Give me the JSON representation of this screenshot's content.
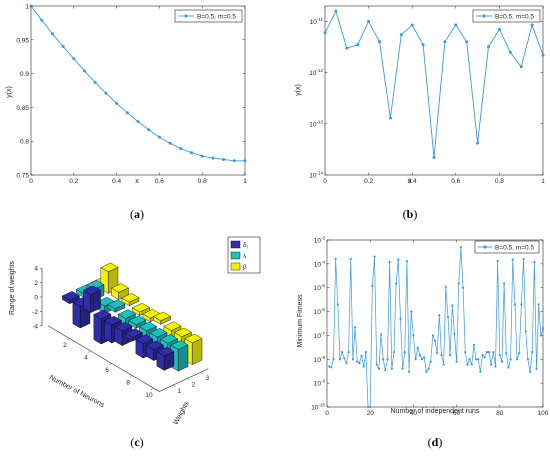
{
  "colors": {
    "line": "#3d9ad6",
    "axis": "#262626",
    "bar_weight1": "#2e2ea8",
    "bar_weight2": "#1fbfbf",
    "bar_weight3": "#f2f20a"
  },
  "chart_data": [
    {
      "type": "line",
      "panel_label": "a",
      "xlabel": "x",
      "ylabel": "y(x)",
      "xlim": [
        0,
        1
      ],
      "ylim": [
        0.75,
        1
      ],
      "xticks": [
        "0",
        "0.2",
        "0.4",
        "0.6",
        "0.8",
        "1"
      ],
      "yticks": [
        "0.75",
        "0.8",
        "0.85",
        "0.9",
        "0.95",
        "1"
      ],
      "legend_position": "top-right",
      "series": [
        {
          "name": "B=0.5, m=0.5",
          "x": [
            0,
            0.05,
            0.1,
            0.15,
            0.2,
            0.25,
            0.3,
            0.35,
            0.4,
            0.45,
            0.5,
            0.55,
            0.6,
            0.65,
            0.7,
            0.75,
            0.8,
            0.85,
            0.9,
            0.95,
            1
          ],
          "y": [
            1.0,
            0.979,
            0.959,
            0.94,
            0.922,
            0.904,
            0.887,
            0.871,
            0.856,
            0.842,
            0.829,
            0.817,
            0.806,
            0.797,
            0.789,
            0.783,
            0.778,
            0.775,
            0.773,
            0.771,
            0.771
          ]
        }
      ]
    },
    {
      "type": "line",
      "panel_label": "b",
      "xlabel": "x",
      "ylabel": "y(x)",
      "yscale": "log",
      "xlim": [
        0,
        1
      ],
      "ylim": [
        1e-14,
        2e-11
      ],
      "xticks": [
        "0",
        "0.2",
        "0.4",
        "0.6",
        "0.8",
        "1"
      ],
      "yticks": [
        {
          "value": 1e-11,
          "base": "10",
          "exp": "-11"
        },
        {
          "value": 1e-12,
          "base": "10",
          "exp": "-12"
        },
        {
          "value": 1e-13,
          "base": "10",
          "exp": "-13"
        },
        {
          "value": 1e-14,
          "base": "10",
          "exp": "-14"
        }
      ],
      "legend_position": "top-right",
      "series": [
        {
          "name": "B=0.5, m=0.5",
          "x": [
            0,
            0.05,
            0.1,
            0.15,
            0.2,
            0.25,
            0.3,
            0.35,
            0.4,
            0.45,
            0.5,
            0.55,
            0.6,
            0.65,
            0.7,
            0.75,
            0.8,
            0.85,
            0.9,
            0.95,
            1
          ],
          "y": [
            6e-12,
            1.6e-11,
            3e-12,
            3.5e-12,
            1e-11,
            4e-12,
            1.3e-13,
            5.5e-12,
            8.5e-12,
            3.5e-12,
            2.2e-14,
            4e-12,
            8.5e-12,
            4e-12,
            4.2e-14,
            3.2e-12,
            7e-12,
            2.5e-12,
            1.3e-12,
            8.5e-12,
            2.2e-12
          ]
        }
      ]
    },
    {
      "type": "bar3d",
      "panel_label": "c",
      "xlabel": "Weights",
      "ylabel": "Number of Neurons",
      "zlabel": "Range of weights",
      "zticks": [
        "-4",
        "-2",
        "0",
        "2",
        "4"
      ],
      "weight_ticks": [
        "1",
        "2",
        "3"
      ],
      "neuron_ticks": [
        "2",
        "4",
        "6",
        "8",
        "10"
      ],
      "legend_position": "top-right",
      "legend": [
        "δ",
        "λ",
        "β"
      ],
      "legend_subscript": "i",
      "neurons": [
        1,
        2,
        3,
        4,
        5,
        6,
        7,
        8,
        9,
        10
      ],
      "series": [
        {
          "values": [
            -0.5,
            -3.0,
            2.5,
            -3.5,
            -2.5,
            -2.0,
            -0.5,
            -2.0,
            -1.5,
            -2.0
          ]
        },
        {
          "values": [
            -0.5,
            1.5,
            -1.0,
            0.5,
            -1.5,
            -0.5,
            -1.0,
            -2.5,
            -2.0,
            -3.0
          ]
        },
        {
          "values": [
            -0.5,
            3.0,
            1.0,
            0.5,
            -0.5,
            -0.5,
            0.5,
            -1.0,
            -1.0,
            -3.0
          ]
        }
      ]
    },
    {
      "type": "line",
      "panel_label": "d",
      "xlabel": "Number of independent runs",
      "ylabel": "Minimum Fitness",
      "yscale": "log",
      "xlim": [
        0,
        100
      ],
      "ylim": [
        1e-10,
        0.001
      ],
      "xticks": [
        "0",
        "20",
        "40",
        "60",
        "80",
        "100"
      ],
      "yticks": [
        {
          "value": 0.001,
          "base": "10",
          "exp": "-3"
        },
        {
          "value": 0.0001,
          "base": "10",
          "exp": "-4"
        },
        {
          "value": 1e-05,
          "base": "10",
          "exp": "-5"
        },
        {
          "value": 1e-06,
          "base": "10",
          "exp": "-6"
        },
        {
          "value": 1e-07,
          "base": "10",
          "exp": "-7"
        },
        {
          "value": 1e-08,
          "base": "10",
          "exp": "-8"
        },
        {
          "value": 1e-09,
          "base": "10",
          "exp": "-9"
        },
        {
          "value": 1e-10,
          "base": "10",
          "exp": "-10"
        }
      ],
      "legend_position": "top-right",
      "series": [
        {
          "name": "B=0.5, m=0.5",
          "x": [
            1,
            2,
            3,
            4,
            5,
            6,
            7,
            8,
            9,
            10,
            11,
            12,
            13,
            14,
            15,
            16,
            17,
            18,
            19,
            20,
            21,
            22,
            23,
            24,
            25,
            26,
            27,
            28,
            29,
            30,
            31,
            32,
            33,
            34,
            35,
            36,
            37,
            38,
            39,
            40,
            41,
            42,
            43,
            44,
            45,
            46,
            47,
            48,
            49,
            50,
            51,
            52,
            53,
            54,
            55,
            56,
            57,
            58,
            59,
            60,
            61,
            62,
            63,
            64,
            65,
            66,
            67,
            68,
            69,
            70,
            71,
            72,
            73,
            74,
            75,
            76,
            77,
            78,
            79,
            80,
            81,
            82,
            83,
            84,
            85,
            86,
            87,
            88,
            89,
            90,
            91,
            92,
            93,
            94,
            95,
            96,
            97,
            98,
            99,
            100
          ],
          "y": [
            5e-09,
            4.6e-09,
            1e-08,
            0.00016,
            2e-06,
            1e-08,
            2e-08,
            1.1e-08,
            7e-09,
            2e-08,
            0.00016,
            1e-08,
            2.2e-07,
            8e-09,
            7e-09,
            1.4e-08,
            5e-09,
            2e-08,
            1e-10,
            1e-10,
            1.2e-05,
            0.0002,
            6e-09,
            4e-09,
            1.1e-07,
            1e-08,
            3.5e-09,
            1e-08,
            0.00012,
            4e-09,
            2e-08,
            1.5e-05,
            0.00015,
            5e-07,
            4e-09,
            2e-08,
            0.00013,
            3e-09,
            1e-06,
            1e-07,
            1e-08,
            3e-08,
            1.5e-08,
            1e-08,
            1.2e-08,
            3e-09,
            4e-09,
            8e-09,
            1e-07,
            6e-08,
            1.8e-08,
            7e-07,
            1.5e-08,
            6e-09,
            1.1e-05,
            6e-07,
            1.5e-08,
            1.8e-06,
            1.2e-07,
            8e-09,
            1.5e-05,
            0.0005,
            1e-05,
            2e-08,
            6e-09,
            1e-08,
            6e-09,
            4e-08,
            1e-08,
            1e-08,
            3e-09,
            1.5e-08,
            1.2e-08,
            2e-08,
            2e-08,
            6e-09,
            2e-08,
            5e-09,
            0.00013,
            1.5e-08,
            8e-09,
            1.5e-05,
            1.8e-08,
            4.5e-09,
            1e-08,
            0.00015,
            2e-06,
            1e-08,
            1.8e-08,
            2e-06,
            0.00016,
            1.5e-07,
            1e-08,
            3e-09,
            2e-08,
            0.00012,
            4e-09,
            2e-06,
            1e-07,
            2e-07
          ]
        }
      ]
    }
  ]
}
